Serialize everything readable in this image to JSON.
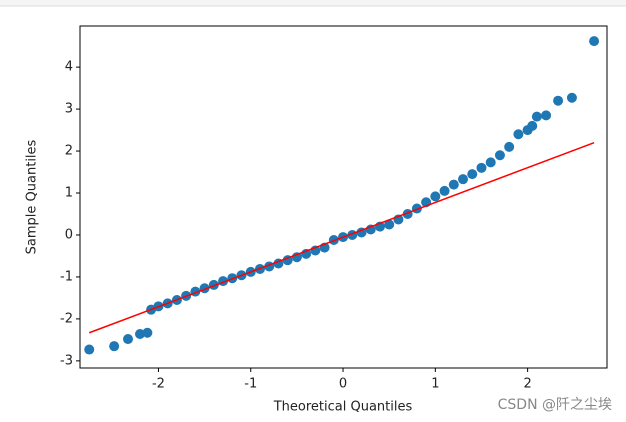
{
  "chart_data": {
    "type": "scatter",
    "xlabel": "Theoretical Quantiles",
    "ylabel": "Sample Quantiles",
    "watermark": "CSDN @阡之尘埃",
    "x": [
      -2.75,
      -2.48,
      -2.33,
      -2.2,
      -2.12,
      -2.08,
      -2.0,
      -1.9,
      -1.8,
      -1.7,
      -1.6,
      -1.5,
      -1.4,
      -1.3,
      -1.2,
      -1.1,
      -1.0,
      -0.9,
      -0.8,
      -0.7,
      -0.6,
      -0.5,
      -0.4,
      -0.3,
      -0.2,
      -0.1,
      0,
      0.1,
      0.2,
      0.3,
      0.4,
      0.5,
      0.6,
      0.7,
      0.8,
      0.9,
      1.0,
      1.1,
      1.2,
      1.3,
      1.4,
      1.5,
      1.6,
      1.7,
      1.8,
      1.9,
      2.0,
      2.05,
      2.1,
      2.2,
      2.33,
      2.48,
      2.72
    ],
    "values": [
      -2.73,
      -2.65,
      -2.48,
      -2.36,
      -2.33,
      -1.78,
      -1.7,
      -1.63,
      -1.55,
      -1.45,
      -1.35,
      -1.27,
      -1.19,
      -1.1,
      -1.03,
      -0.96,
      -0.88,
      -0.81,
      -0.75,
      -0.68,
      -0.6,
      -0.53,
      -0.45,
      -0.37,
      -0.3,
      -0.12,
      -0.05,
      0.0,
      0.06,
      0.13,
      0.2,
      0.25,
      0.37,
      0.5,
      0.63,
      0.78,
      0.92,
      1.05,
      1.2,
      1.33,
      1.45,
      1.6,
      1.73,
      1.9,
      2.1,
      2.4,
      2.5,
      2.6,
      2.82,
      2.85,
      3.2,
      3.27,
      4.62
    ],
    "color": "#1f77b4",
    "line": {
      "x": [
        -2.75,
        2.72
      ],
      "values": [
        -2.33,
        2.2
      ],
      "color": "#ff0000"
    },
    "xlim": [
      -2.85,
      2.86
    ],
    "ylim": [
      -3.17,
      4.98
    ],
    "xticks": [
      -2,
      -1,
      0,
      1,
      2
    ],
    "yticks": [
      -3,
      -2,
      -1,
      0,
      1,
      2,
      3,
      4
    ]
  }
}
